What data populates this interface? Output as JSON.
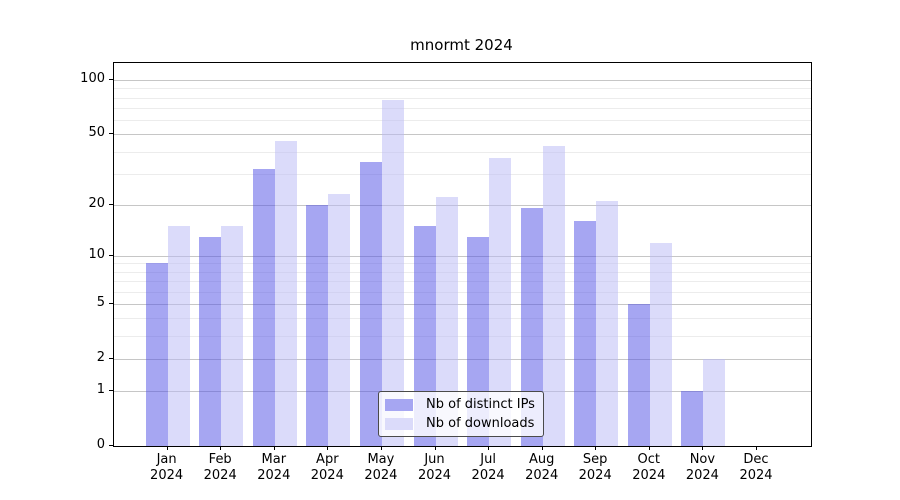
{
  "title": "mnormt 2024",
  "chart_data": {
    "type": "bar",
    "title": "mnormt 2024",
    "categories": [
      "Jan 2024",
      "Feb 2024",
      "Mar 2024",
      "Apr 2024",
      "May 2024",
      "Jun 2024",
      "Jul 2024",
      "Aug 2024",
      "Sep 2024",
      "Oct 2024",
      "Nov 2024",
      "Dec 2024"
    ],
    "series": [
      {
        "name": "Nb of distinct IPs",
        "color": "#a6a6f2",
        "fill_rgba": "rgba(77,77,229,0.5)",
        "values": [
          9,
          13,
          32,
          20,
          35,
          15,
          13,
          19,
          16,
          5,
          1,
          0
        ]
      },
      {
        "name": "Nb of downloads",
        "color": "#dbdbfa",
        "fill_rgba": "rgba(183,183,245,0.5)",
        "values": [
          15,
          15,
          46,
          23,
          78,
          22,
          37,
          43,
          21,
          12,
          2,
          0
        ]
      }
    ],
    "xlabel": "",
    "ylabel": "",
    "yscale": "log1p",
    "ylim": [
      0,
      124
    ],
    "grid": true,
    "y_tick_values": [
      0,
      1,
      2,
      5,
      10,
      20,
      50,
      100
    ],
    "y_tick_labels": [
      "0",
      "1",
      "2",
      "5",
      "10",
      "20",
      "50",
      "100"
    ],
    "y_minor_gridline_values": [
      3,
      4,
      6,
      7,
      8,
      9,
      30,
      40,
      60,
      70,
      80,
      90
    ],
    "legend": {
      "position": "bottom-center",
      "entries": [
        "Nb of distinct IPs",
        "Nb of downloads"
      ]
    },
    "colors": {
      "grid_major": "#c6c6c6",
      "grid_minor": "#ececec",
      "spine": "#000000",
      "text": "#000000"
    }
  }
}
